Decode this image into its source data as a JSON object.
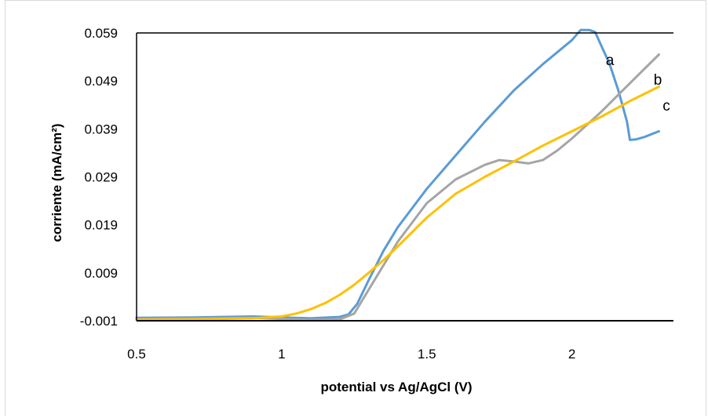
{
  "chart_data": {
    "type": "line",
    "title": "",
    "xlabel": "potential vs Ag/AgCl (V)",
    "ylabel": "corriente (mA/cm²)",
    "xlim": [
      0.5,
      2.35
    ],
    "ylim": [
      -0.001,
      0.059
    ],
    "x_ticks": [
      "0.5",
      "1",
      "1.5",
      "2"
    ],
    "x_tick_values": [
      0.5,
      1,
      1.5,
      2
    ],
    "y_ticks": [
      "-0.001",
      "0.009",
      "0.019",
      "0.029",
      "0.039",
      "0.049",
      "0.059"
    ],
    "y_tick_values": [
      -0.001,
      0.009,
      0.019,
      0.029,
      0.039,
      0.049,
      0.059
    ],
    "grid": false,
    "legend": "none",
    "series": [
      {
        "name": "a",
        "color": "#5b9bd5",
        "x": [
          0.5,
          0.7,
          0.9,
          1.0,
          1.1,
          1.2,
          1.23,
          1.26,
          1.3,
          1.35,
          1.4,
          1.5,
          1.6,
          1.7,
          1.8,
          1.9,
          2.0,
          2.03,
          2.06,
          2.08,
          2.1,
          2.13,
          2.16,
          2.19,
          2.2,
          2.22,
          2.25,
          2.3
        ],
        "y": [
          -0.0004,
          -0.0003,
          -0.0001,
          -0.0003,
          -0.0005,
          -0.0002,
          0.0003,
          0.0025,
          0.0075,
          0.0135,
          0.0185,
          0.0265,
          0.0335,
          0.0405,
          0.047,
          0.0525,
          0.0575,
          0.0596,
          0.0596,
          0.0592,
          0.0565,
          0.0525,
          0.047,
          0.0405,
          0.0367,
          0.0368,
          0.0373,
          0.0385
        ]
      },
      {
        "name": "b",
        "color": "#a5a5a5",
        "x": [
          0.5,
          0.7,
          0.9,
          1.0,
          1.1,
          1.2,
          1.25,
          1.3,
          1.35,
          1.4,
          1.5,
          1.6,
          1.7,
          1.75,
          1.8,
          1.85,
          1.9,
          1.95,
          2.0,
          2.1,
          2.2,
          2.3
        ],
        "y": [
          -0.0006,
          -0.0005,
          -0.0004,
          -0.0006,
          -0.0008,
          -0.0007,
          0.0005,
          0.0055,
          0.0105,
          0.0155,
          0.0235,
          0.0285,
          0.0315,
          0.0325,
          0.0322,
          0.0318,
          0.0325,
          0.0345,
          0.037,
          0.0425,
          0.0485,
          0.0545
        ]
      },
      {
        "name": "c",
        "color": "#ffc000",
        "x": [
          0.5,
          0.7,
          0.9,
          1.0,
          1.05,
          1.1,
          1.15,
          1.2,
          1.25,
          1.3,
          1.35,
          1.4,
          1.5,
          1.6,
          1.7,
          1.8,
          1.9,
          2.0,
          2.1,
          2.2,
          2.3
        ],
        "y": [
          -0.0008,
          -0.0007,
          -0.0005,
          -0.0001,
          0.0005,
          0.0014,
          0.0027,
          0.0044,
          0.0065,
          0.009,
          0.0116,
          0.0145,
          0.0205,
          0.0255,
          0.029,
          0.0322,
          0.0355,
          0.0385,
          0.0415,
          0.0448,
          0.0478
        ]
      }
    ]
  }
}
